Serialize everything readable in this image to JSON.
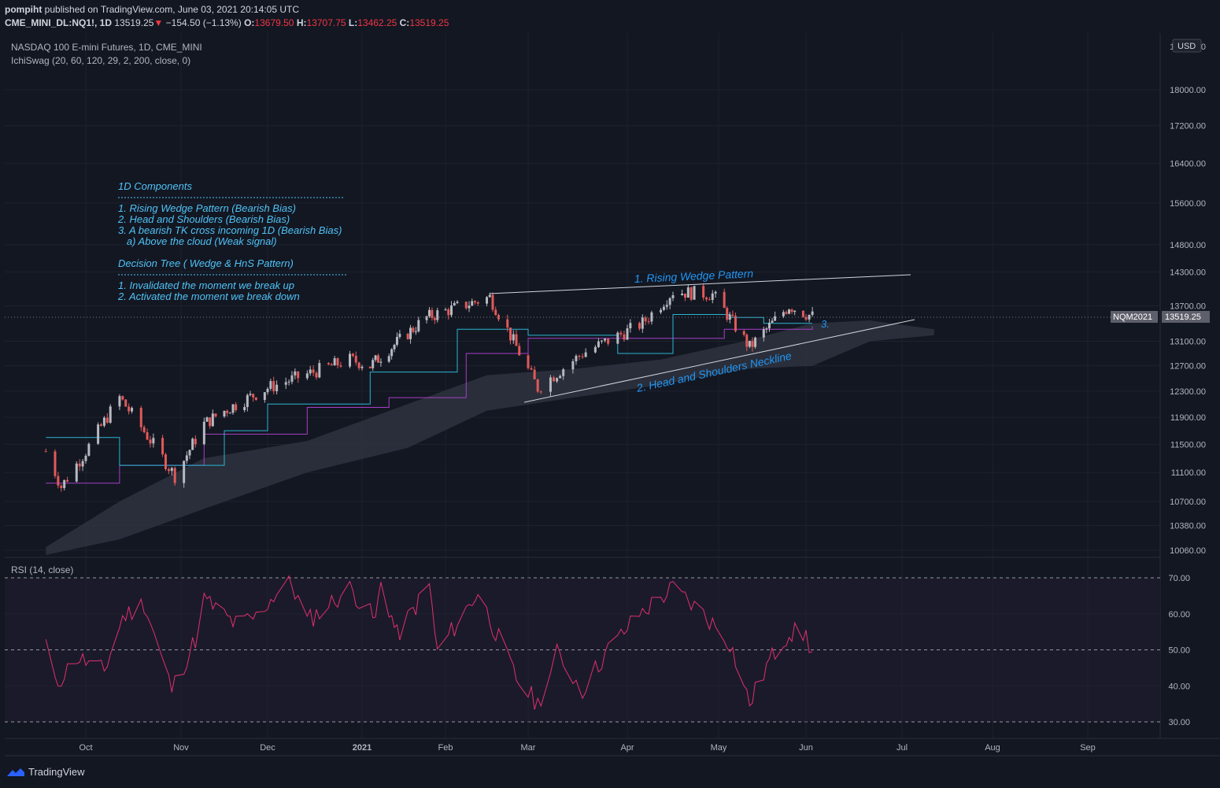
{
  "header": {
    "publisher": "pompiht",
    "published_text": "published on TradingView.com, June 03, 2021 20:14:05 UTC",
    "symbol": "CME_MINI_DL:NQ1!, 1D",
    "last": "13519.25",
    "change": "−154.50 (−1.13%)",
    "open_label": "O:",
    "open": "13679.50",
    "high_label": "H:",
    "high": "13707.75",
    "low_label": "L:",
    "low": "13462.25",
    "close_label": "C:",
    "close": "13519.25",
    "down_arrow": "▼"
  },
  "legend": {
    "title": "NASDAQ 100 E-mini Futures, 1D, CME_MINI",
    "indicator": "IchiSwag (20, 60, 120, 29, 2, 200, close, 0)",
    "rsi": "RSI (14, close)"
  },
  "currency": "USD",
  "price_tag": {
    "contract": "NQM2021",
    "value": "13519.25"
  },
  "annotations": {
    "components_title": "1D Components",
    "components": [
      "1. Rising Wedge Pattern (Bearish Bias)",
      "2. Head and Shoulders (Bearish Bias)",
      "3. A bearish TK cross incoming 1D (Bearish Bias)",
      "   a) Above the cloud (Weak signal)"
    ],
    "decision_title": "Decision Tree ( Wedge & HnS Pattern)",
    "decision": [
      "1. Invalidated the moment we break up",
      "2. Activated the moment we break down"
    ],
    "wedge_label": "1. Rising Wedge Pattern",
    "neckline_label": "2. Head and Shoulders Neckline",
    "tk_label": "3."
  },
  "brand": "TradingView",
  "colors": {
    "background": "#131722",
    "up": "#b7b9c0",
    "down": "#e05a5a",
    "tenkan": "#2ab6d1",
    "kijun": "#a53ec6",
    "cloud": "#2e323e",
    "rsi": "#e0306e",
    "annotation": "#4fc3f7",
    "wedge_text": "#2196f3"
  },
  "chart_data": [
    {
      "type": "candlestick",
      "title": "NASDAQ 100 E-mini Futures, 1D, CME_MINI",
      "x_ticks": [
        "Oct",
        "Nov",
        "Dec",
        "2021",
        "Feb",
        "Mar",
        "Apr",
        "May",
        "Jun",
        "Jul",
        "Aug",
        "Sep"
      ],
      "y_ticks": [
        10060,
        10380,
        10700,
        11100,
        11500,
        11900,
        12300,
        12700,
        13100,
        13700,
        14300,
        14800,
        15600,
        16400,
        17200,
        18000
      ],
      "y_top_label": "19000.00",
      "ylim": [
        10000,
        19000
      ],
      "scale": "log",
      "last_close": 13519.25,
      "close_series": [
        {
          "date": "2020-09-18",
          "close": 11400
        },
        {
          "date": "2020-09-23",
          "close": 10900
        },
        {
          "date": "2020-10-01",
          "close": 11400
        },
        {
          "date": "2020-10-12",
          "close": 12200
        },
        {
          "date": "2020-10-30",
          "close": 11050
        },
        {
          "date": "2020-11-09",
          "close": 11800
        },
        {
          "date": "2020-11-16",
          "close": 12000
        },
        {
          "date": "2020-12-01",
          "close": 12350
        },
        {
          "date": "2020-12-28",
          "close": 12800
        },
        {
          "date": "2021-01-04",
          "close": 12700
        },
        {
          "date": "2021-01-25",
          "close": 13500
        },
        {
          "date": "2021-02-16",
          "close": 13850
        },
        {
          "date": "2021-03-04",
          "close": 12350
        },
        {
          "date": "2021-03-18",
          "close": 12900
        },
        {
          "date": "2021-04-06",
          "close": 13400
        },
        {
          "date": "2021-04-16",
          "close": 13950
        },
        {
          "date": "2021-04-29",
          "close": 13900
        },
        {
          "date": "2021-05-12",
          "close": 13000
        },
        {
          "date": "2021-05-26",
          "close": 13700
        },
        {
          "date": "2021-06-03",
          "close": 13519.25
        }
      ],
      "tenkan_series": [
        {
          "date": "2020-09-18",
          "value": 11600
        },
        {
          "date": "2020-10-12",
          "value": 11200
        },
        {
          "date": "2020-11-16",
          "value": 11700
        },
        {
          "date": "2020-12-01",
          "value": 12100
        },
        {
          "date": "2021-01-04",
          "value": 12600
        },
        {
          "date": "2021-02-05",
          "value": 13300
        },
        {
          "date": "2021-03-01",
          "value": 13200
        },
        {
          "date": "2021-03-29",
          "value": 12900
        },
        {
          "date": "2021-04-16",
          "value": 13550
        },
        {
          "date": "2021-05-05",
          "value": 13500
        },
        {
          "date": "2021-05-17",
          "value": 13400
        },
        {
          "date": "2021-06-03",
          "value": 13400
        }
      ],
      "kijun_series": [
        {
          "date": "2020-09-18",
          "value": 10950
        },
        {
          "date": "2020-10-12",
          "value": 11200
        },
        {
          "date": "2020-11-09",
          "value": 11650
        },
        {
          "date": "2020-12-14",
          "value": 12050
        },
        {
          "date": "2021-01-11",
          "value": 12200
        },
        {
          "date": "2021-02-08",
          "value": 12900
        },
        {
          "date": "2021-03-01",
          "value": 13150
        },
        {
          "date": "2021-04-05",
          "value": 13150
        },
        {
          "date": "2021-05-03",
          "value": 13300
        },
        {
          "date": "2021-06-03",
          "value": 13350
        }
      ],
      "cloud": [
        {
          "date": "2020-09-18",
          "top": 10100,
          "bottom": 10000
        },
        {
          "date": "2020-10-12",
          "top": 10700,
          "bottom": 10200
        },
        {
          "date": "2020-11-09",
          "top": 11300,
          "bottom": 10600
        },
        {
          "date": "2020-12-14",
          "top": 11550,
          "bottom": 11100
        },
        {
          "date": "2021-01-18",
          "top": 12100,
          "bottom": 11450
        },
        {
          "date": "2021-02-15",
          "top": 12550,
          "bottom": 12000
        },
        {
          "date": "2021-03-15",
          "top": 12650,
          "bottom": 12200
        },
        {
          "date": "2021-04-12",
          "top": 12800,
          "bottom": 12400
        },
        {
          "date": "2021-05-10",
          "top": 13100,
          "bottom": 12650
        },
        {
          "date": "2021-06-03",
          "top": 13400,
          "bottom": 12700
        },
        {
          "date": "2021-06-21",
          "top": 13450,
          "bottom": 13100
        },
        {
          "date": "2021-07-12",
          "top": 13300,
          "bottom": 13200
        }
      ]
    },
    {
      "type": "line",
      "title": "RSI (14, close)",
      "y_ticks": [
        30,
        40,
        50,
        60,
        70
      ],
      "ylim": [
        27,
        71
      ],
      "levels": [
        30,
        50,
        70
      ],
      "series": [
        {
          "date": "2020-09-18",
          "value": 52
        },
        {
          "date": "2020-09-21",
          "value": 40
        },
        {
          "date": "2020-09-28",
          "value": 48
        },
        {
          "date": "2020-10-07",
          "value": 44
        },
        {
          "date": "2020-10-13",
          "value": 59
        },
        {
          "date": "2020-10-20",
          "value": 63
        },
        {
          "date": "2020-10-29",
          "value": 39
        },
        {
          "date": "2020-11-06",
          "value": 53
        },
        {
          "date": "2020-11-09",
          "value": 64
        },
        {
          "date": "2020-11-20",
          "value": 57
        },
        {
          "date": "2020-11-27",
          "value": 59
        },
        {
          "date": "2020-12-08",
          "value": 70
        },
        {
          "date": "2020-12-14",
          "value": 58
        },
        {
          "date": "2020-12-28",
          "value": 67
        },
        {
          "date": "2021-01-06",
          "value": 58
        },
        {
          "date": "2021-01-08",
          "value": 69
        },
        {
          "date": "2021-01-14",
          "value": 54
        },
        {
          "date": "2021-01-26",
          "value": 68
        },
        {
          "date": "2021-01-29",
          "value": 49
        },
        {
          "date": "2021-02-12",
          "value": 66
        },
        {
          "date": "2021-02-25",
          "value": 42
        },
        {
          "date": "2021-03-04",
          "value": 35
        },
        {
          "date": "2021-03-10",
          "value": 49
        },
        {
          "date": "2021-03-18",
          "value": 39
        },
        {
          "date": "2021-03-26",
          "value": 50
        },
        {
          "date": "2021-04-05",
          "value": 60
        },
        {
          "date": "2021-04-16",
          "value": 67
        },
        {
          "date": "2021-04-26",
          "value": 60
        },
        {
          "date": "2021-05-05",
          "value": 52
        },
        {
          "date": "2021-05-12",
          "value": 35
        },
        {
          "date": "2021-05-19",
          "value": 47
        },
        {
          "date": "2021-05-26",
          "value": 55
        },
        {
          "date": "2021-06-01",
          "value": 54
        },
        {
          "date": "2021-06-03",
          "value": 49
        }
      ]
    }
  ]
}
